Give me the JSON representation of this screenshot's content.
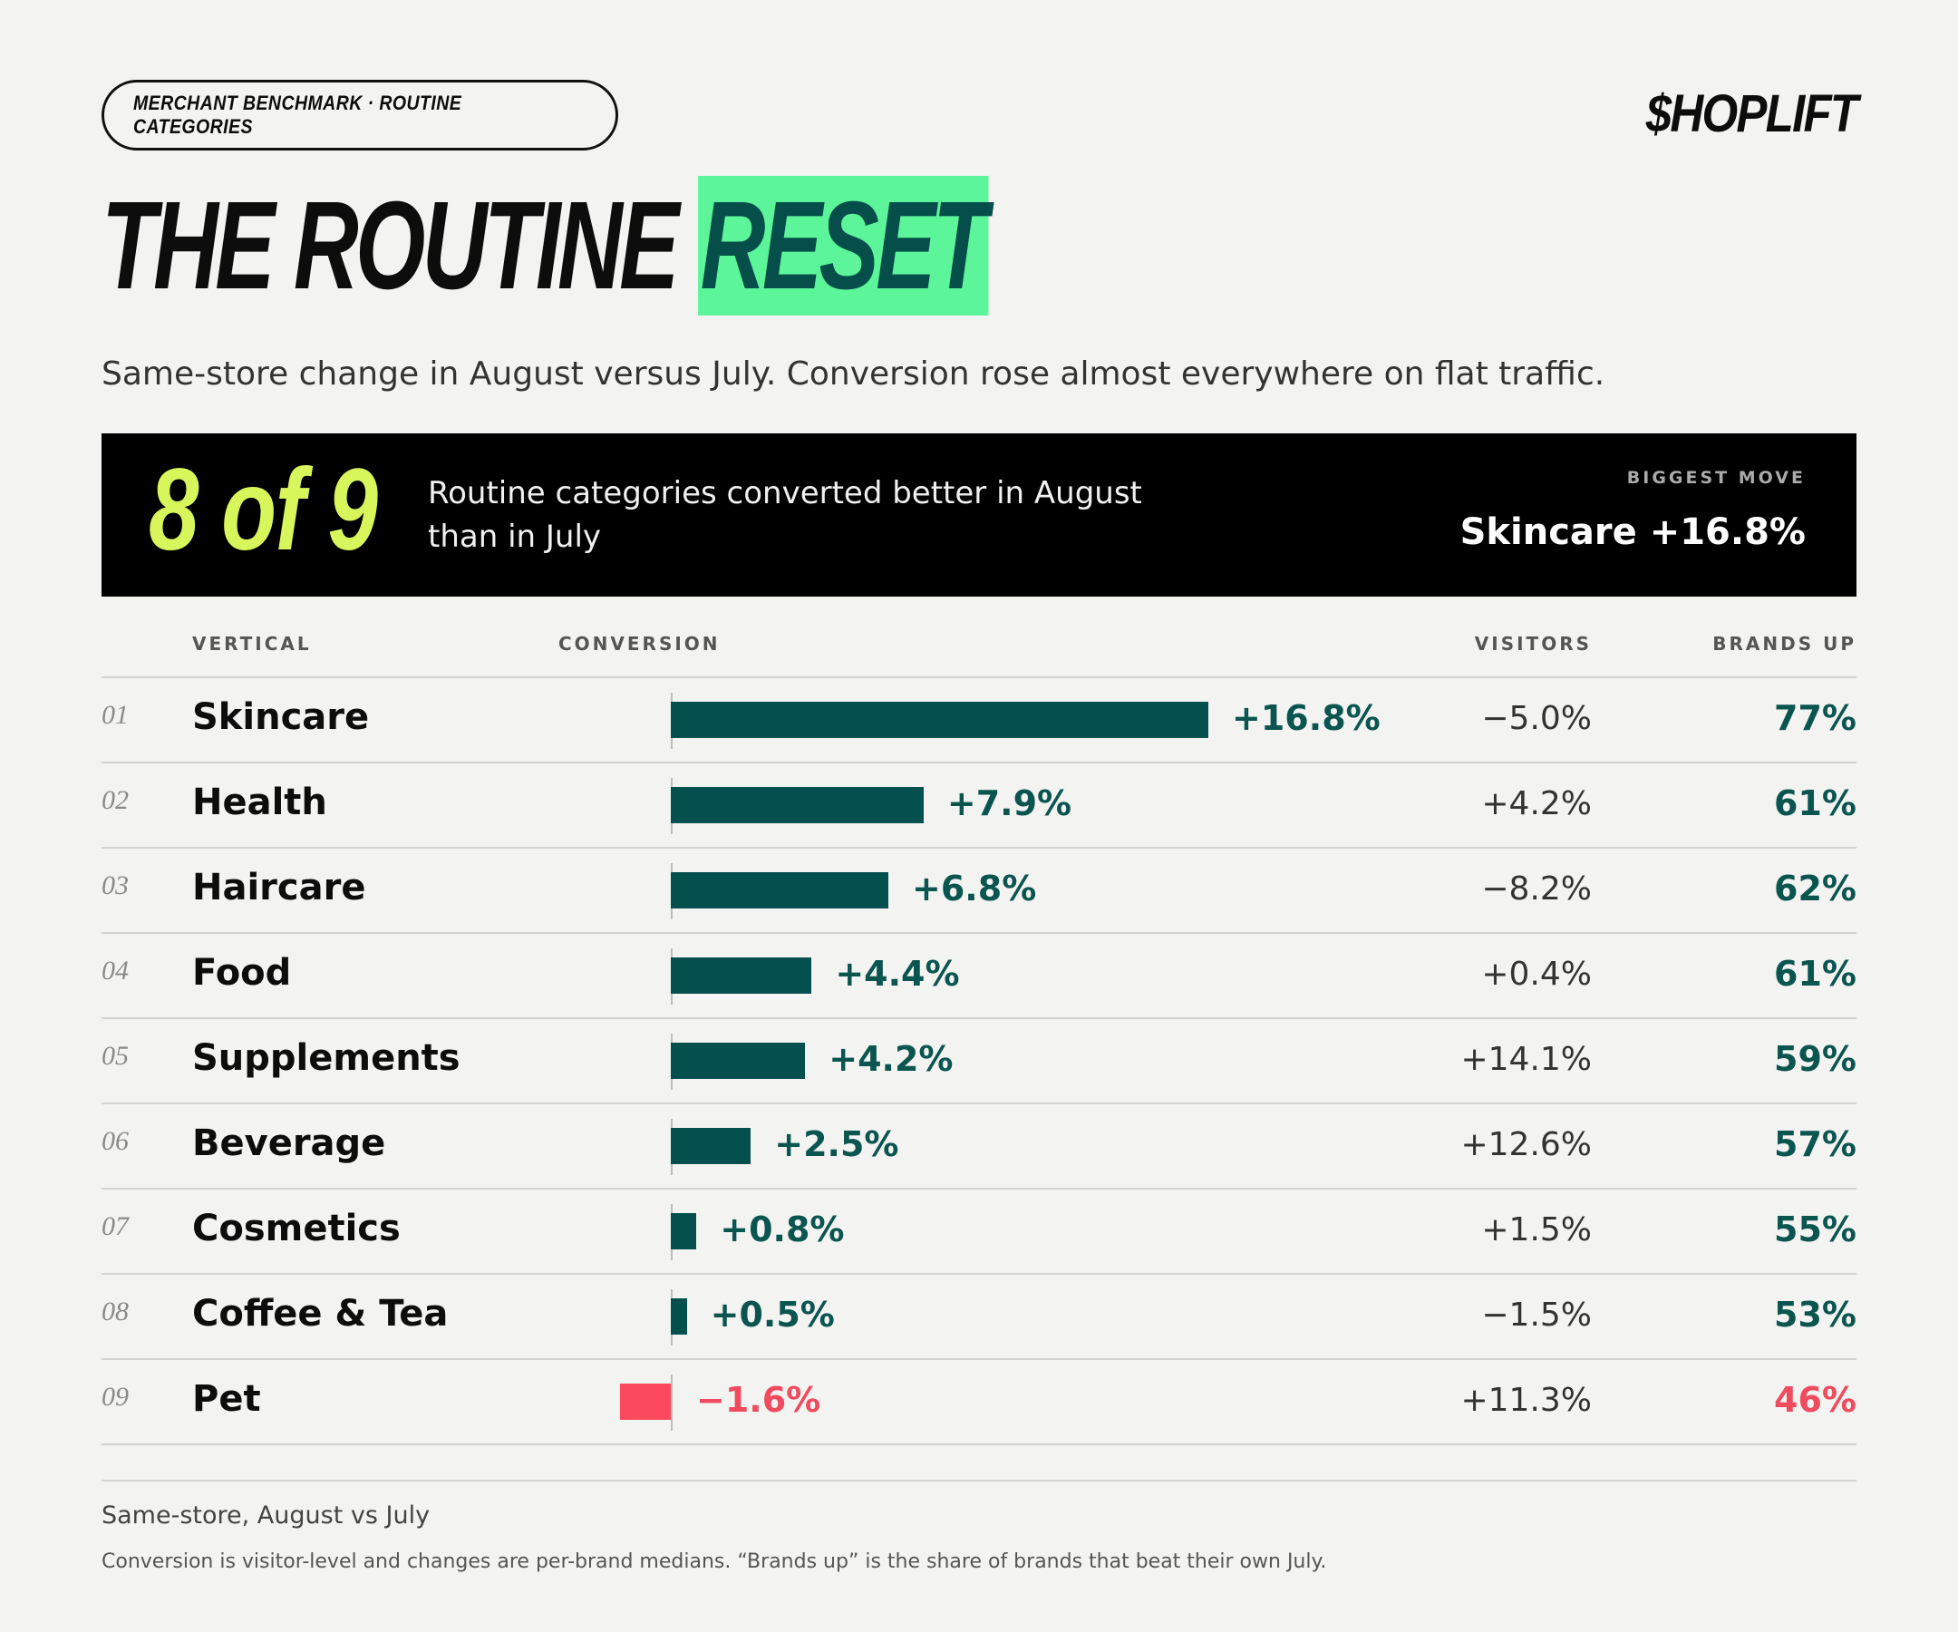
{
  "header": {
    "kicker": "MERCHANT BENCHMARK · ROUTINE CATEGORIES",
    "brand": "$HOPLIFT",
    "title_main": "THE ROUTINE ",
    "title_highlight": "RESET",
    "subtitle": "Same-store change in August versus July. Conversion rose almost everywhere on flat traffic."
  },
  "banner": {
    "big_stat": "8 of 9",
    "description": "Routine categories converted better in August than in July",
    "biggest_move_label": "BIGGEST MOVE",
    "biggest_move_value": "Skincare +16.8%"
  },
  "columns": {
    "vertical": "VERTICAL",
    "conversion": "CONVERSION",
    "visitors": "VISITORS",
    "brands_up": "BRANDS UP"
  },
  "chart_data": {
    "type": "bar",
    "orientation": "horizontal",
    "categories": [
      "Skincare",
      "Health",
      "Haircare",
      "Food",
      "Supplements",
      "Beverage",
      "Cosmetics",
      "Coffee & Tea",
      "Pet"
    ],
    "series": [
      {
        "name": "CONVERSION",
        "values": [
          16.8,
          7.9,
          6.8,
          4.4,
          4.2,
          2.5,
          0.8,
          0.5,
          -1.6
        ],
        "unit": "%"
      }
    ],
    "colors": {
      "positive": "#03504f",
      "negative": "#fb4a5e"
    }
  },
  "rows": [
    {
      "num": "01",
      "name": "Skincare",
      "conversion": 16.8,
      "conversion_label": "+16.8%",
      "visitors": "−5.0%",
      "brands_up": "77%",
      "brands_neg": false
    },
    {
      "num": "02",
      "name": "Health",
      "conversion": 7.9,
      "conversion_label": "+7.9%",
      "visitors": "+4.2%",
      "brands_up": "61%",
      "brands_neg": false
    },
    {
      "num": "03",
      "name": "Haircare",
      "conversion": 6.8,
      "conversion_label": "+6.8%",
      "visitors": "−8.2%",
      "brands_up": "62%",
      "brands_neg": false
    },
    {
      "num": "04",
      "name": "Food",
      "conversion": 4.4,
      "conversion_label": "+4.4%",
      "visitors": "+0.4%",
      "brands_up": "61%",
      "brands_neg": false
    },
    {
      "num": "05",
      "name": "Supplements",
      "conversion": 4.2,
      "conversion_label": "+4.2%",
      "visitors": "+14.1%",
      "brands_up": "59%",
      "brands_neg": false
    },
    {
      "num": "06",
      "name": "Beverage",
      "conversion": 2.5,
      "conversion_label": "+2.5%",
      "visitors": "+12.6%",
      "brands_up": "57%",
      "brands_neg": false
    },
    {
      "num": "07",
      "name": "Cosmetics",
      "conversion": 0.8,
      "conversion_label": "+0.8%",
      "visitors": "+1.5%",
      "brands_up": "55%",
      "brands_neg": false
    },
    {
      "num": "08",
      "name": "Coffee & Tea",
      "conversion": 0.5,
      "conversion_label": "+0.5%",
      "visitors": "−1.5%",
      "brands_up": "53%",
      "brands_neg": false
    },
    {
      "num": "09",
      "name": "Pet",
      "conversion": -1.6,
      "conversion_label": "−1.6%",
      "visitors": "+11.3%",
      "brands_up": "46%",
      "brands_neg": true
    }
  ],
  "footer": {
    "source": "Same-store, August vs July",
    "note": "Conversion is visitor-level and changes are per-brand medians. “Brands up” is the share of brands that beat their own July."
  }
}
